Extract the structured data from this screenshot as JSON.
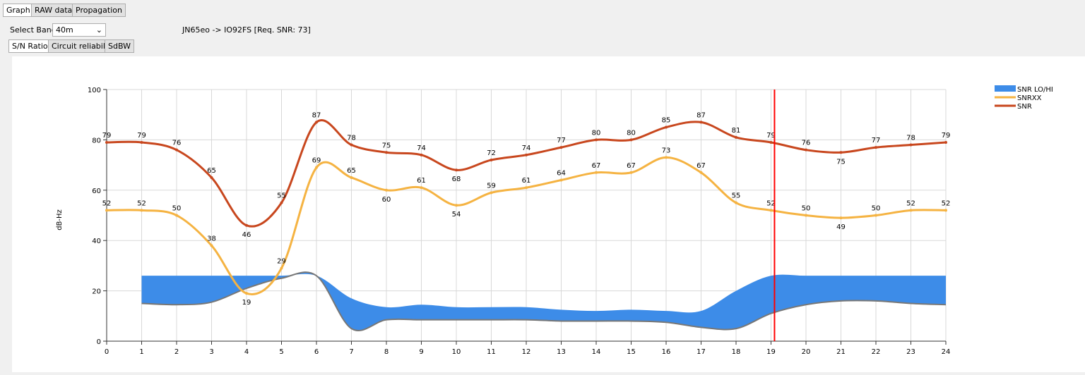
{
  "ui": {
    "tabs": [
      "Graph",
      "RAW data",
      "Propagation"
    ],
    "band_label": "Select Band",
    "band_value": "40m",
    "route": "JN65eo -> IO92FS [Req. SNR: 73]",
    "buttons": [
      "S/N Ratio",
      "Circuit reliability",
      "SdBW"
    ]
  },
  "chart_data": {
    "type": "line",
    "y_label": "dB-Hz",
    "x": [
      0,
      1,
      2,
      3,
      4,
      5,
      6,
      7,
      8,
      9,
      10,
      11,
      12,
      13,
      14,
      15,
      16,
      17,
      18,
      19,
      20,
      21,
      22,
      23,
      24
    ],
    "xlim": [
      0,
      24
    ],
    "xticks": [
      0,
      1,
      2,
      3,
      4,
      5,
      6,
      7,
      8,
      9,
      10,
      11,
      12,
      13,
      14,
      15,
      16,
      17,
      18,
      19,
      20,
      21,
      22,
      23,
      24
    ],
    "ylim": [
      0,
      100
    ],
    "yticks": [
      0,
      20,
      40,
      60,
      80,
      100
    ],
    "grid": true,
    "legend": "top-right",
    "series": [
      {
        "name": "SNR LO/HI",
        "color": "#3d8ce8",
        "high": [
          null,
          26,
          26,
          26,
          26,
          26,
          26,
          17,
          13.5,
          14.5,
          13.5,
          13.5,
          13.5,
          12.5,
          12,
          12.5,
          12,
          12,
          20,
          26,
          26,
          26,
          26,
          26,
          26
        ],
        "low": [
          null,
          15,
          14.5,
          15.5,
          21,
          25,
          26,
          5,
          8.5,
          8.5,
          8.5,
          8.5,
          8.5,
          8,
          8,
          8,
          7.5,
          5.5,
          5,
          11,
          14.5,
          16,
          16,
          15,
          14.5
        ]
      },
      {
        "name": "SNRXX",
        "color": "#f5b342",
        "values": [
          52,
          52,
          50,
          38,
          19,
          29,
          69,
          65,
          60,
          61,
          54,
          59,
          61,
          64,
          67,
          67,
          73,
          67,
          55,
          52,
          50,
          49,
          50,
          52,
          52
        ]
      },
      {
        "name": "SNR",
        "color": "#c8471e",
        "values": [
          79,
          79,
          76,
          65,
          46,
          55,
          87,
          78,
          75,
          74,
          68,
          72,
          74,
          77,
          80,
          80,
          85,
          87,
          81,
          79,
          76,
          75,
          77,
          78,
          79
        ]
      }
    ],
    "vline": {
      "x": 19.1,
      "color": "#ff0000"
    }
  }
}
